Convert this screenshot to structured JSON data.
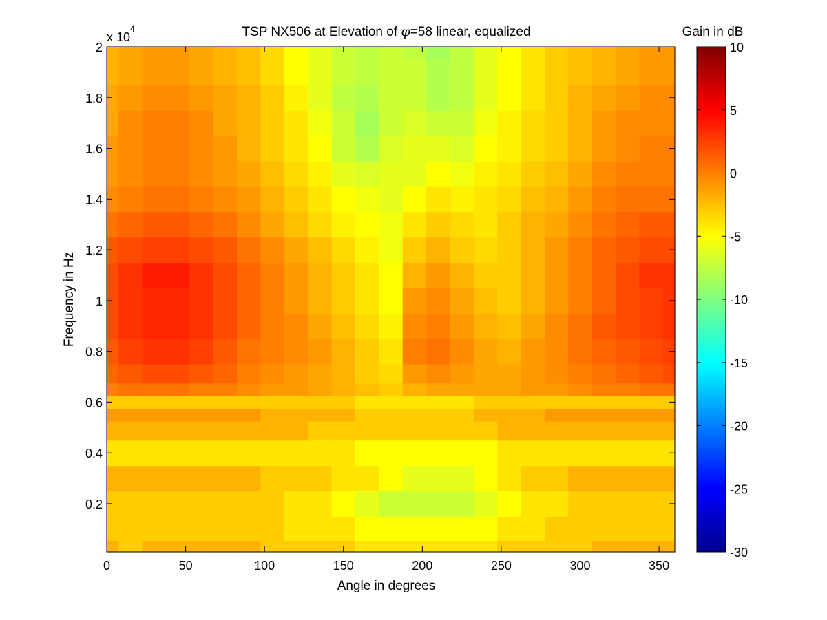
{
  "chart_data": {
    "type": "heatmap",
    "title_prefix": "TSP NX506 at Elevation of ",
    "title_symbol": "φ",
    "title_suffix": "=58 linear, equalized",
    "xlabel": "Angle in degrees",
    "ylabel": "Frequency in Hz",
    "y_exponent_label": "x 10",
    "y_exponent_power": "4",
    "colorbar_label": "Gain in dB",
    "colormap": "jet",
    "xlim": [
      0,
      360
    ],
    "ylim": [
      100,
      20000
    ],
    "clim": [
      -30,
      10
    ],
    "x_ticks": [
      0,
      50,
      100,
      150,
      200,
      250,
      300,
      350
    ],
    "y_ticks": [
      0.2,
      0.4,
      0.6,
      0.8,
      1,
      1.2,
      1.4,
      1.6,
      1.8,
      2
    ],
    "colorbar_ticks": [
      10,
      5,
      0,
      -5,
      -10,
      -15,
      -20,
      -25,
      -30
    ],
    "angles": [
      0,
      15,
      30,
      45,
      60,
      75,
      90,
      105,
      120,
      135,
      150,
      165,
      180,
      195,
      210,
      225,
      240,
      255,
      270,
      285,
      300,
      315,
      330,
      345,
      360
    ],
    "frequencies": [
      100,
      1000,
      2000,
      3000,
      4000,
      5000,
      5500,
      6000,
      6500,
      7000,
      8000,
      9000,
      10000,
      11000,
      12000,
      13000,
      14000,
      15000,
      16000,
      17000,
      18000,
      19000,
      20000
    ],
    "gain_db_rows": [
      [
        -2,
        -3,
        -2,
        -2,
        -2,
        -2,
        -2,
        -3,
        -3,
        -3,
        -3,
        -4,
        -4,
        -4,
        -4,
        -4,
        -4,
        -3,
        -3,
        -3,
        -3,
        -2,
        -2,
        -2,
        -2
      ],
      [
        -3,
        -3,
        -3,
        -3,
        -3,
        -3,
        -3,
        -3,
        -4,
        -4,
        -4,
        -5,
        -5,
        -5,
        -5,
        -5,
        -5,
        -4,
        -4,
        -3,
        -3,
        -3,
        -3,
        -3,
        -3
      ],
      [
        -3,
        -3,
        -3,
        -3,
        -3,
        -3,
        -3,
        -3,
        -4,
        -4,
        -5,
        -6,
        -7,
        -7,
        -7,
        -7,
        -6,
        -5,
        -4,
        -4,
        -3,
        -3,
        -3,
        -3,
        -3
      ],
      [
        -2,
        -2,
        -2,
        -2,
        -2,
        -2,
        -2,
        -3,
        -3,
        -3,
        -4,
        -4,
        -5,
        -6,
        -6,
        -6,
        -5,
        -4,
        -3,
        -3,
        -2,
        -2,
        -2,
        -2,
        -2
      ],
      [
        -4,
        -4,
        -4,
        -4,
        -4,
        -4,
        -4,
        -4,
        -4,
        -4,
        -4,
        -5,
        -5,
        -5,
        -5,
        -5,
        -5,
        -4,
        -4,
        -4,
        -4,
        -4,
        -4,
        -4,
        -4
      ],
      [
        -2,
        -2,
        -2,
        -2,
        -2,
        -2,
        -2,
        -2,
        -2,
        -3,
        -3,
        -3,
        -3,
        -3,
        -3,
        -3,
        -3,
        -2,
        -2,
        -2,
        -2,
        -2,
        -2,
        -2,
        -2
      ],
      [
        -1,
        -1,
        -1,
        -1,
        -1,
        -1,
        -1,
        -2,
        -2,
        -2,
        -2,
        -3,
        -3,
        -3,
        -3,
        -3,
        -2,
        -2,
        -2,
        -1,
        -1,
        -1,
        -1,
        -1,
        -1
      ],
      [
        -3,
        -3,
        -3,
        -3,
        -3,
        -3,
        -3,
        -3,
        -3,
        -3,
        -3,
        -4,
        -4,
        -4,
        -4,
        -4,
        -3,
        -3,
        -3,
        -3,
        -3,
        -3,
        -3,
        -3,
        -3
      ],
      [
        0,
        0.5,
        0.5,
        0.5,
        0,
        0,
        -0.5,
        -1,
        -1,
        -1.5,
        -2,
        -2.5,
        -3,
        -2,
        -1.5,
        -1.5,
        -1.5,
        -1.5,
        -1,
        -1,
        -0.5,
        0,
        0,
        0.5,
        0.5
      ],
      [
        1,
        1.5,
        2,
        2,
        1.5,
        1,
        0,
        -0.5,
        -1,
        -1.5,
        -2,
        -3,
        -3.5,
        -1,
        -0.5,
        -1,
        -1.5,
        -1.5,
        -1,
        -0.5,
        0,
        0.5,
        1,
        1.5,
        2
      ],
      [
        1.5,
        2.5,
        3,
        3,
        2.5,
        1.5,
        0.5,
        0,
        -0.5,
        -1,
        -2,
        -3,
        -4,
        0,
        0.5,
        -0.5,
        -1.5,
        -2,
        -1,
        -0.5,
        0.5,
        1,
        1.5,
        2,
        2.5
      ],
      [
        2,
        3,
        3.5,
        3.5,
        3,
        2,
        1,
        0,
        -0.5,
        -1.5,
        -2.5,
        -3.5,
        -4.5,
        -0.5,
        0,
        -1,
        -2,
        -2.5,
        -1.5,
        -0.5,
        0.5,
        1.5,
        2,
        2.5,
        3
      ],
      [
        2,
        3,
        3.5,
        3.5,
        3,
        2,
        1,
        0,
        -1,
        -2,
        -3,
        -4,
        -5,
        -1,
        -0.5,
        -1.5,
        -2.5,
        -3,
        -2,
        -1,
        0,
        1,
        2,
        2.5,
        3
      ],
      [
        2,
        3,
        4,
        4,
        3,
        2,
        1,
        0,
        -1,
        -2,
        -3,
        -4,
        -5,
        -2,
        -1,
        -2,
        -3,
        -3,
        -2,
        -1,
        0,
        1,
        2,
        3,
        3
      ],
      [
        1.5,
        2,
        2.5,
        2.5,
        2,
        1.5,
        0.5,
        -0.5,
        -1.5,
        -2.5,
        -3.5,
        -4.5,
        -5.5,
        -3,
        -2,
        -3,
        -3.5,
        -3,
        -2,
        -1,
        0,
        1,
        1.5,
        2,
        2
      ],
      [
        0.5,
        1,
        1.5,
        1.5,
        1,
        0.5,
        -0.5,
        -1.5,
        -2.5,
        -3.5,
        -4.5,
        -5,
        -5.5,
        -4,
        -3,
        -3.5,
        -4,
        -3,
        -2,
        -1.5,
        -0.5,
        0.5,
        1,
        1.5,
        1.5
      ],
      [
        -0.5,
        0,
        0.5,
        0.5,
        0,
        -0.5,
        -1,
        -2,
        -3,
        -4,
        -5,
        -5.5,
        -6,
        -5,
        -4,
        -4.5,
        -4,
        -3.5,
        -2.5,
        -2,
        -1,
        0,
        0.5,
        0.5,
        0.5
      ],
      [
        -1,
        -0.5,
        0,
        0,
        -0.5,
        -1,
        -1.5,
        -2.5,
        -3.5,
        -4.5,
        -6,
        -6.5,
        -6,
        -6,
        -5,
        -5.5,
        -4.5,
        -4,
        -3,
        -2.5,
        -1.5,
        -0.5,
        0,
        0,
        0
      ],
      [
        -1,
        -0.5,
        0,
        0,
        -0.5,
        -1,
        -2,
        -3,
        -4,
        -5,
        -7,
        -8,
        -6.5,
        -6,
        -6,
        -6.5,
        -5,
        -4.5,
        -3.5,
        -3,
        -2,
        -1,
        -0.5,
        0,
        0
      ],
      [
        -1.5,
        -0.5,
        0,
        0,
        -0.5,
        -1.5,
        -2,
        -3,
        -4,
        -5.5,
        -7,
        -8.5,
        -7,
        -6.5,
        -7,
        -7,
        -5.5,
        -4.5,
        -3.5,
        -3,
        -2,
        -1,
        -0.5,
        -0.5,
        -0.5
      ],
      [
        -1.5,
        -1,
        -0.5,
        -0.5,
        -1,
        -1.5,
        -2,
        -3,
        -4.5,
        -6,
        -7.5,
        -8,
        -7,
        -7,
        -8,
        -7.5,
        -6,
        -5,
        -4,
        -3,
        -2,
        -1.5,
        -1,
        -0.5,
        -0.5
      ],
      [
        -2,
        -1.5,
        -1,
        -1,
        -1.5,
        -2,
        -2.5,
        -3.5,
        -5,
        -6,
        -7,
        -7.5,
        -7,
        -7,
        -8,
        -7.5,
        -6,
        -5,
        -4,
        -3,
        -2.5,
        -2,
        -1.5,
        -1,
        -1
      ],
      [
        -2,
        -1.5,
        -1,
        -1,
        -1.5,
        -2,
        -2.5,
        -3.5,
        -5,
        -6,
        -7,
        -7.5,
        -7,
        -7.5,
        -8.5,
        -7.5,
        -6,
        -5,
        -4,
        -3,
        -2.5,
        -2,
        -1.5,
        -1,
        -1
      ]
    ]
  }
}
